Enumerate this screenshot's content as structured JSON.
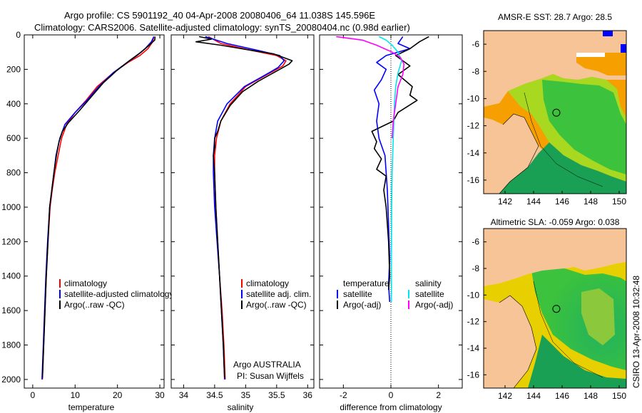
{
  "header": {
    "line1": "Argo profile: CS 5901192_40 04-Apr-2008 20080406_64 11.038S 145.596E",
    "line2": "Climatology: CARS2006. Satellite-adjusted climatology: synTS_20080404.nc (0.98d earlier)"
  },
  "credit": "CSIRO 13-Apr-2008 10:32:48",
  "colors": {
    "red": "#ff0000",
    "blue": "#0000ff",
    "black": "#000000",
    "cyan": "#00e5ee",
    "magenta": "#ff00ff",
    "land": "#f7c497",
    "sea_dark": "#1aa055",
    "sea_green": "#3cc23c",
    "sea_yellow": "#e8d000",
    "sea_orange": "#f5a000"
  },
  "chart_data": [
    {
      "type": "line",
      "id": "temperature",
      "xlabel": "temperature",
      "xlim": [
        -2,
        31
      ],
      "ylim": [
        2050,
        0
      ],
      "xticks": [
        0,
        10,
        20,
        30
      ],
      "yticks": [
        0,
        200,
        400,
        600,
        800,
        1000,
        1200,
        1400,
        1600,
        1800,
        2000
      ],
      "legend": [
        "climatology",
        "satellite-adjusted climatology",
        "Argo(..raw -QC)"
      ],
      "series": [
        {
          "name": "climatology",
          "color": "red",
          "points": [
            [
              28.6,
              10
            ],
            [
              28.3,
              40
            ],
            [
              27.2,
              80
            ],
            [
              25.3,
              120
            ],
            [
              22.5,
              160
            ],
            [
              19.0,
              220
            ],
            [
              15.2,
              300
            ],
            [
              12.6,
              380
            ],
            [
              10.0,
              450
            ],
            [
              8.0,
              520
            ],
            [
              6.8,
              600
            ],
            [
              6.0,
              700
            ],
            [
              5.2,
              800
            ],
            [
              4.6,
              900
            ],
            [
              4.1,
              1000
            ],
            [
              3.6,
              1200
            ],
            [
              3.2,
              1400
            ],
            [
              2.9,
              1600
            ],
            [
              2.6,
              1800
            ],
            [
              2.3,
              2000
            ]
          ]
        },
        {
          "name": "satellite-adjusted climatology",
          "color": "blue",
          "points": [
            [
              28.6,
              10
            ],
            [
              28.0,
              40
            ],
            [
              26.5,
              80
            ],
            [
              24.6,
              120
            ],
            [
              22.3,
              160
            ],
            [
              19.0,
              220
            ],
            [
              15.6,
              300
            ],
            [
              12.8,
              380
            ],
            [
              10.0,
              450
            ],
            [
              7.6,
              520
            ],
            [
              6.4,
              600
            ],
            [
              5.5,
              700
            ],
            [
              5.0,
              800
            ],
            [
              4.5,
              900
            ],
            [
              4.0,
              1000
            ],
            [
              3.5,
              1200
            ],
            [
              3.1,
              1400
            ],
            [
              2.8,
              1600
            ],
            [
              2.5,
              1800
            ],
            [
              2.2,
              2000
            ]
          ]
        },
        {
          "name": "Argo(..raw -QC)",
          "color": "black",
          "points": [
            [
              28.9,
              10
            ],
            [
              28.8,
              30
            ],
            [
              27.5,
              60
            ],
            [
              25.6,
              100
            ],
            [
              22.8,
              150
            ],
            [
              19.7,
              210
            ],
            [
              16.6,
              280
            ],
            [
              13.8,
              360
            ],
            [
              11.0,
              440
            ],
            [
              8.4,
              510
            ],
            [
              7.0,
              560
            ],
            [
              6.2,
              620
            ],
            [
              5.6,
              700
            ],
            [
              5.0,
              800
            ],
            [
              4.5,
              900
            ],
            [
              4.0,
              1000
            ],
            [
              3.6,
              1200
            ],
            [
              3.2,
              1400
            ],
            [
              2.9,
              1600
            ],
            [
              2.6,
              1800
            ],
            [
              2.3,
              1990
            ]
          ]
        }
      ]
    },
    {
      "type": "line",
      "id": "salinity",
      "xlabel": "salinity",
      "xlim": [
        33.8,
        36.1
      ],
      "ylim": [
        2050,
        0
      ],
      "xticks": [
        34,
        34.5,
        35,
        35.5,
        36
      ],
      "legend": [
        "climatology",
        "satellite adj. clim.",
        "Argo(..raw -QC)"
      ],
      "annotations": [
        "Argo AUSTRALIA",
        "PI: Susan Wijffels"
      ],
      "series": [
        {
          "name": "climatology",
          "color": "red",
          "points": [
            [
              34.4,
              10
            ],
            [
              34.6,
              50
            ],
            [
              35.1,
              90
            ],
            [
              35.5,
              120
            ],
            [
              35.65,
              150
            ],
            [
              35.6,
              180
            ],
            [
              35.35,
              230
            ],
            [
              35.0,
              300
            ],
            [
              34.75,
              400
            ],
            [
              34.6,
              500
            ],
            [
              34.53,
              600
            ],
            [
              34.5,
              700
            ],
            [
              34.5,
              800
            ],
            [
              34.52,
              1000
            ],
            [
              34.55,
              1200
            ],
            [
              34.58,
              1400
            ],
            [
              34.62,
              1600
            ],
            [
              34.65,
              1800
            ],
            [
              34.67,
              2000
            ]
          ]
        },
        {
          "name": "satellite adj. clim.",
          "color": "blue",
          "points": [
            [
              34.35,
              10
            ],
            [
              34.7,
              50
            ],
            [
              35.2,
              90
            ],
            [
              35.55,
              120
            ],
            [
              35.62,
              150
            ],
            [
              35.52,
              190
            ],
            [
              35.28,
              240
            ],
            [
              34.98,
              300
            ],
            [
              34.7,
              400
            ],
            [
              34.55,
              500
            ],
            [
              34.5,
              600
            ],
            [
              34.48,
              700
            ],
            [
              34.48,
              800
            ],
            [
              34.5,
              1000
            ],
            [
              34.54,
              1200
            ],
            [
              34.58,
              1400
            ],
            [
              34.61,
              1600
            ],
            [
              34.64,
              1800
            ],
            [
              34.66,
              2000
            ]
          ]
        },
        {
          "name": "Argo(..raw -QC)",
          "color": "black",
          "points": [
            [
              34.25,
              10
            ],
            [
              34.45,
              25
            ],
            [
              34.2,
              40
            ],
            [
              34.6,
              60
            ],
            [
              35.1,
              90
            ],
            [
              35.45,
              110
            ],
            [
              35.75,
              150
            ],
            [
              35.7,
              170
            ],
            [
              35.5,
              210
            ],
            [
              35.2,
              270
            ],
            [
              34.95,
              330
            ],
            [
              34.75,
              410
            ],
            [
              34.6,
              500
            ],
            [
              34.55,
              560
            ],
            [
              34.5,
              600
            ],
            [
              34.5,
              650
            ],
            [
              34.48,
              700
            ],
            [
              34.5,
              800
            ],
            [
              34.52,
              1000
            ],
            [
              34.55,
              1200
            ],
            [
              34.58,
              1400
            ],
            [
              34.61,
              1600
            ],
            [
              34.64,
              1800
            ],
            [
              34.66,
              1990
            ]
          ]
        }
      ]
    },
    {
      "type": "line",
      "id": "difference",
      "xlabel": "difference from climatology",
      "xlim": [
        -3,
        3
      ],
      "ylim": [
        2050,
        0
      ],
      "xticks": [
        -2,
        0,
        2
      ],
      "zero_line": true,
      "legend_groups": [
        {
          "title": "temperature",
          "entries": [
            "satellite",
            "Argo(-adj)"
          ]
        },
        {
          "title": "salinity",
          "entries": [
            "satellite",
            "Argo(-adj)"
          ]
        }
      ],
      "series": [
        {
          "name": "temperature satellite",
          "color": "blue",
          "points": [
            [
              0.5,
              10
            ],
            [
              0.4,
              30
            ],
            [
              0.3,
              50
            ],
            [
              0.8,
              80
            ],
            [
              -0.2,
              120
            ],
            [
              -0.6,
              160
            ],
            [
              -0.2,
              200
            ],
            [
              -0.4,
              260
            ],
            [
              -0.7,
              320
            ],
            [
              -0.5,
              400
            ],
            [
              -0.6,
              500
            ],
            [
              -0.5,
              600
            ],
            [
              -0.25,
              700
            ],
            [
              -0.15,
              900
            ],
            [
              -0.1,
              1100
            ],
            [
              -0.05,
              1300
            ],
            [
              -0.1,
              1450
            ],
            [
              -0.05,
              1550
            ]
          ]
        },
        {
          "name": "temperature Argo(-adj)",
          "color": "black",
          "points": [
            [
              1.6,
              10
            ],
            [
              1.2,
              40
            ],
            [
              0.8,
              80
            ],
            [
              0.2,
              120
            ],
            [
              0.8,
              180
            ],
            [
              0.3,
              230
            ],
            [
              0.9,
              300
            ],
            [
              0.8,
              350
            ],
            [
              1.1,
              380
            ],
            [
              0.3,
              450
            ],
            [
              0.1,
              500
            ],
            [
              -0.8,
              560
            ],
            [
              -0.6,
              620
            ],
            [
              -0.7,
              660
            ],
            [
              -0.4,
              720
            ],
            [
              -0.6,
              780
            ],
            [
              -0.2,
              820
            ],
            [
              -0.3,
              900
            ],
            [
              -0.2,
              1000
            ],
            [
              -0.1,
              1200
            ],
            [
              -0.05,
              1400
            ],
            [
              -0.1,
              1480
            ]
          ]
        },
        {
          "name": "salinity satellite",
          "color": "cyan",
          "points": [
            [
              -0.5,
              10
            ],
            [
              -0.2,
              30
            ],
            [
              0.05,
              60
            ],
            [
              0.3,
              100
            ],
            [
              0.45,
              150
            ],
            [
              0.3,
              220
            ],
            [
              0.2,
              300
            ],
            [
              0.15,
              400
            ],
            [
              0.1,
              600
            ],
            [
              0.05,
              800
            ],
            [
              0.03,
              1000
            ],
            [
              0.02,
              1300
            ],
            [
              0.02,
              1550
            ]
          ]
        },
        {
          "name": "salinity Argo(-adj)",
          "color": "magenta",
          "points": [
            [
              -2.3,
              10
            ],
            [
              -1.2,
              30
            ],
            [
              -0.6,
              60
            ],
            [
              0.05,
              100
            ],
            [
              0.4,
              130
            ],
            [
              0.55,
              170
            ],
            [
              0.5,
              230
            ],
            [
              0.3,
              300
            ],
            [
              0.2,
              400
            ],
            [
              0.1,
              500
            ],
            [
              0.05,
              600
            ]
          ]
        }
      ]
    },
    {
      "type": "heatmap",
      "id": "sst_map",
      "title": "AMSR-E SST: 28.7 Argo: 28.5",
      "xlim": [
        140.5,
        150.5
      ],
      "ylim": [
        -17,
        -5
      ],
      "xticks": [
        142,
        144,
        146,
        148,
        150
      ],
      "yticks": [
        -6,
        -8,
        -10,
        -12,
        -14,
        -16
      ],
      "argo_position": [
        145.596,
        -11.038
      ]
    },
    {
      "type": "heatmap",
      "id": "sla_map",
      "title": "Altimetric SLA: -0.059 Argo: 0.038",
      "xlim": [
        140.5,
        150.5
      ],
      "ylim": [
        -17,
        -5
      ],
      "xticks": [
        142,
        144,
        146,
        148,
        150
      ],
      "yticks": [
        -6,
        -8,
        -10,
        -12,
        -14,
        -16
      ],
      "argo_position": [
        145.596,
        -11.038
      ]
    }
  ]
}
